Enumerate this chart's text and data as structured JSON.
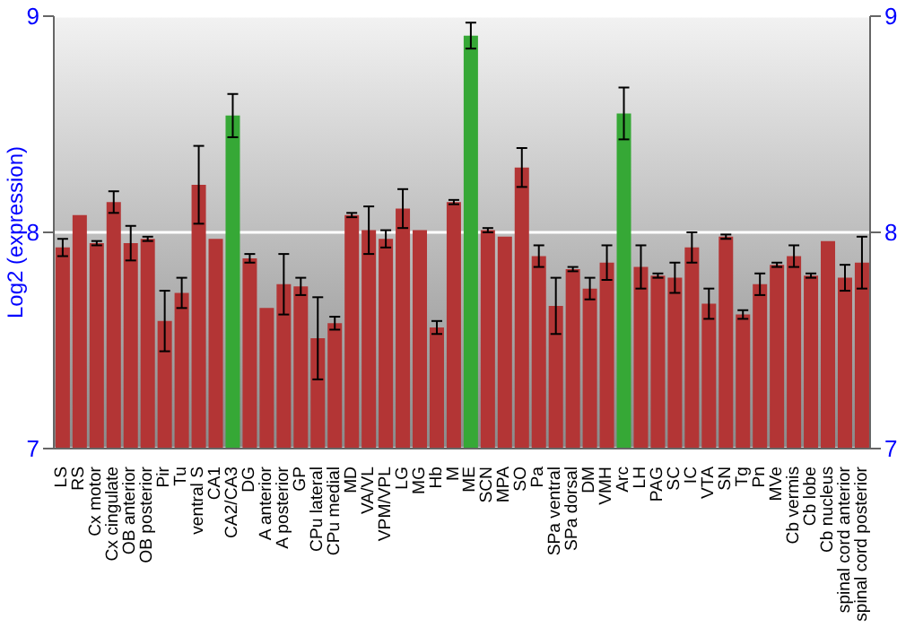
{
  "chart_data": {
    "type": "bar",
    "ylabel": "Log2 (expression)",
    "categories": [
      "LS",
      "RS",
      "Cx motor",
      "Cx cingulate",
      "OB anterior",
      "OB posterior",
      "Pir",
      "Tu",
      "ventral S",
      "CA1",
      "CA2/CA3",
      "DG",
      "A anterior",
      "A posterior",
      "GP",
      "CPu lateral",
      "CPu medial",
      "MD",
      "VA/VL",
      "VPM/VPL",
      "LG",
      "MG",
      "Hb",
      "M",
      "ME",
      "SCN",
      "MPA",
      "SO",
      "Pa",
      "SPa ventral",
      "SPa dorsal",
      "DM",
      "VMH",
      "Arc",
      "LH",
      "PAG",
      "SC",
      "IC",
      "VTA",
      "SN",
      "Tg",
      "Pn",
      "MVe",
      "Cb vermis",
      "Cb lobe",
      "Cb nucleus",
      "spinal cord anterior",
      "spinal cord posterior"
    ],
    "values": [
      7.93,
      8.08,
      7.95,
      8.14,
      7.95,
      7.97,
      7.59,
      7.72,
      8.22,
      7.97,
      8.54,
      7.88,
      7.65,
      7.76,
      7.75,
      7.51,
      7.58,
      8.08,
      8.01,
      7.97,
      8.11,
      8.01,
      7.56,
      8.14,
      8.91,
      8.01,
      7.98,
      8.3,
      7.89,
      7.66,
      7.83,
      7.74,
      7.86,
      8.55,
      7.84,
      7.8,
      7.79,
      7.93,
      7.67,
      7.98,
      7.62,
      7.76,
      7.85,
      7.89,
      7.8,
      7.96,
      7.79,
      7.86
    ],
    "errors": [
      0.04,
      null,
      0.01,
      0.05,
      0.08,
      0.01,
      0.14,
      0.07,
      0.18,
      null,
      0.1,
      0.02,
      null,
      0.14,
      0.04,
      0.19,
      0.03,
      0.01,
      0.11,
      0.04,
      0.09,
      null,
      0.03,
      0.01,
      0.06,
      0.01,
      null,
      0.09,
      0.05,
      0.13,
      0.01,
      0.05,
      0.08,
      0.12,
      0.1,
      0.01,
      0.07,
      0.07,
      0.07,
      0.01,
      0.02,
      0.05,
      0.01,
      0.05,
      0.01,
      null,
      0.06,
      0.12
    ],
    "colors": [
      "#b33535",
      "#b33535",
      "#b33535",
      "#b33535",
      "#b33535",
      "#b33535",
      "#b33535",
      "#b33535",
      "#b33535",
      "#b33535",
      "#36a836",
      "#b33535",
      "#b33535",
      "#b33535",
      "#b33535",
      "#b33535",
      "#b33535",
      "#b33535",
      "#b33535",
      "#b33535",
      "#b33535",
      "#b33535",
      "#b33535",
      "#b33535",
      "#36a836",
      "#b33535",
      "#b33535",
      "#b33535",
      "#b33535",
      "#b33535",
      "#b33535",
      "#b33535",
      "#b33535",
      "#36a836",
      "#b33535",
      "#b33535",
      "#b33535",
      "#b33535",
      "#b33535",
      "#b33535",
      "#b33535",
      "#b33535",
      "#b33535",
      "#b33535",
      "#b33535",
      "#b33535",
      "#b33535",
      "#b33535"
    ],
    "ylim": [
      7,
      9
    ],
    "yticks": [
      7,
      8,
      9
    ],
    "y2lim": [
      7,
      9
    ],
    "y2ticks": [
      7,
      8,
      9
    ],
    "grid": "y",
    "legend": false
  }
}
